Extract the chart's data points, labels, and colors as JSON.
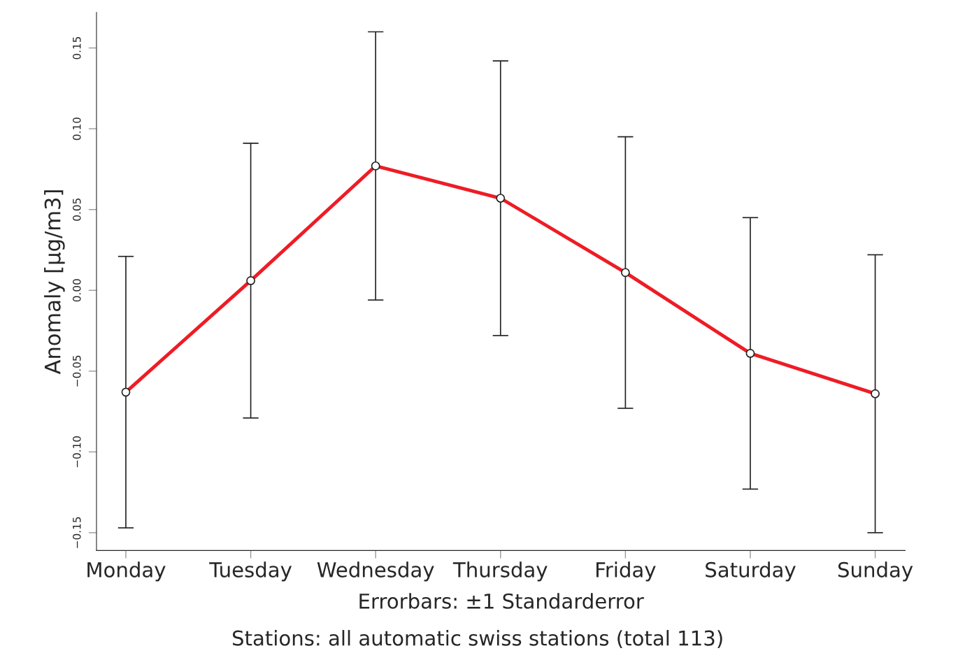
{
  "chart_data": {
    "type": "line",
    "categories": [
      "Monday",
      "Tuesday",
      "Wednesday",
      "Thursday",
      "Friday",
      "Saturday",
      "Sunday"
    ],
    "series": [
      {
        "color": "#ee1c25",
        "values": [
          -0.063,
          0.006,
          0.077,
          0.057,
          0.011,
          -0.039,
          -0.064
        ],
        "errors": [
          0.084,
          0.085,
          0.083,
          0.085,
          0.084,
          0.084,
          0.086
        ]
      }
    ],
    "ylabel": "Anomaly [µg/m3]",
    "xlabel": "Errorbars: ±1 Standarderror",
    "annotations": [
      "Stations: all automatic swiss stations (total 113)"
    ],
    "ylim": [
      -0.161,
      0.172
    ],
    "yticks": [
      {
        "value": -0.15,
        "label": "−0.15"
      },
      {
        "value": -0.1,
        "label": "−0.10"
      },
      {
        "value": -0.05,
        "label": "−0.05"
      },
      {
        "value": 0.0,
        "label": "0.00"
      },
      {
        "value": 0.05,
        "label": "0.05"
      },
      {
        "value": 0.1,
        "label": "0.10"
      },
      {
        "value": 0.15,
        "label": "0.15"
      }
    ],
    "marker": "circle",
    "line_style": "solid",
    "grid": false,
    "legend": false
  }
}
